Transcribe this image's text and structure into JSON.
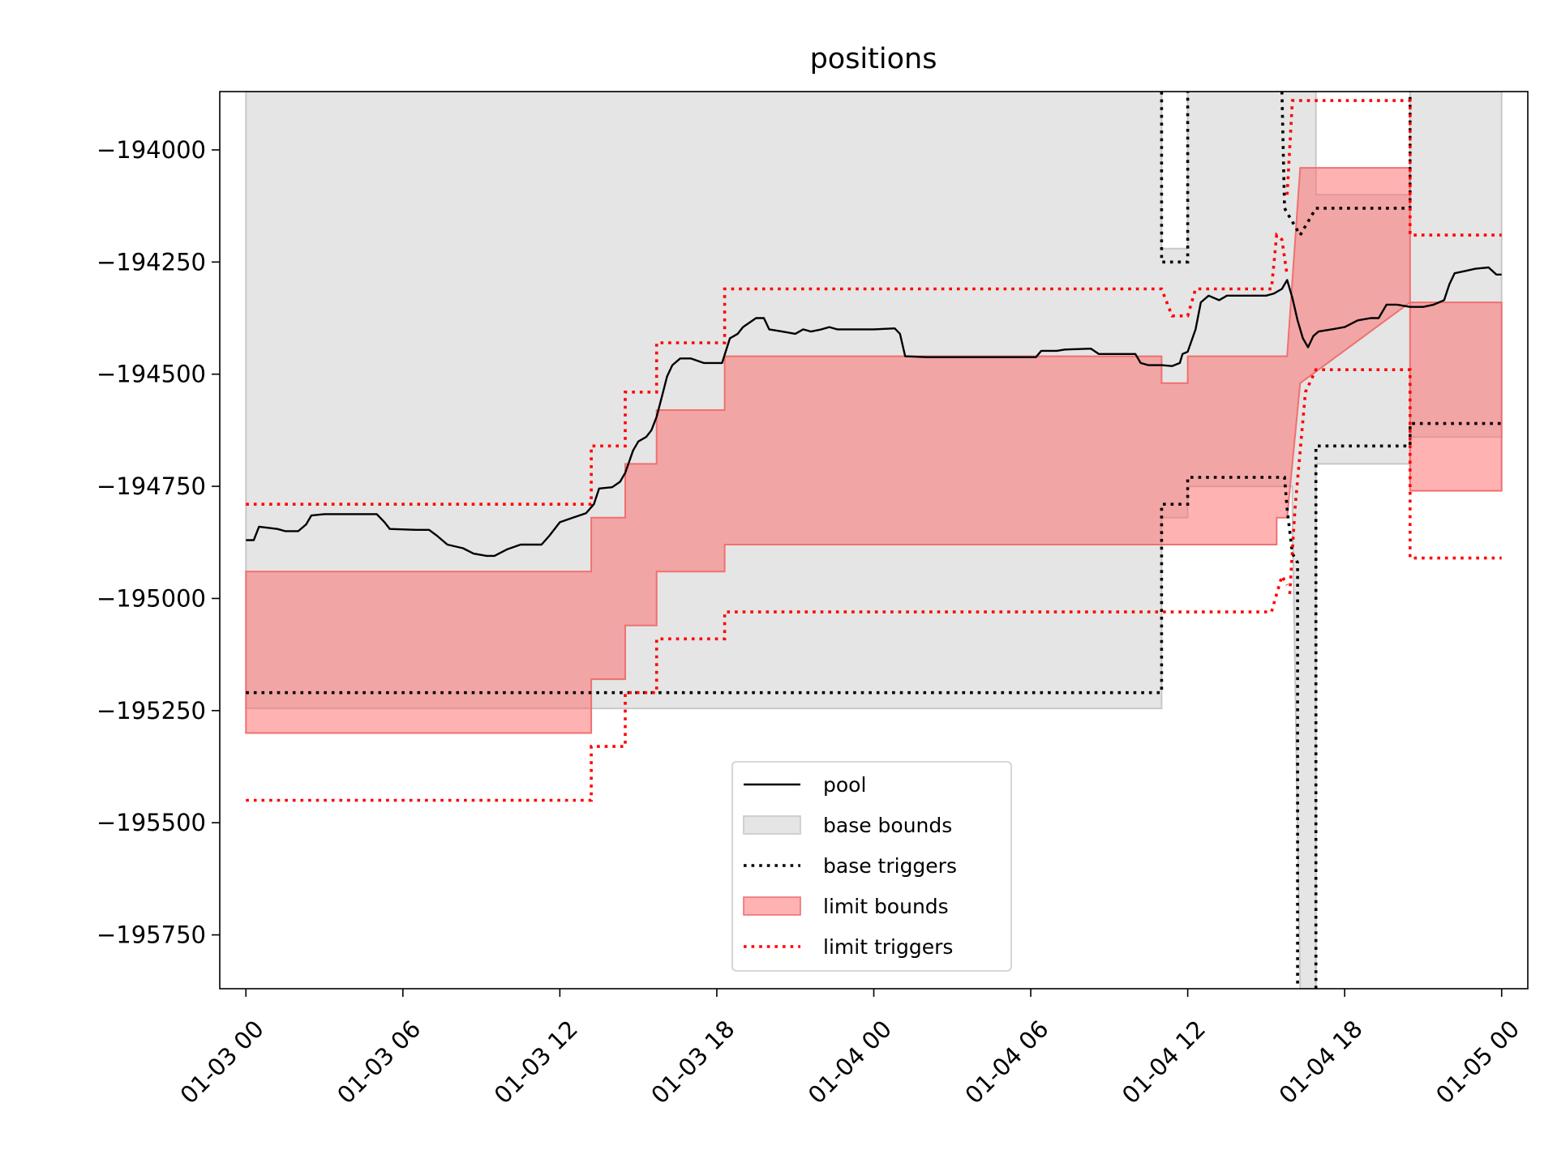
{
  "chart_data": {
    "type": "line",
    "title": "positions",
    "xlabel": "",
    "ylabel": "",
    "xlim": [
      -1.0,
      49.0
    ],
    "ylim": [
      -195870,
      -193870
    ],
    "xticks": [
      {
        "x": 0,
        "label": "01-03 00"
      },
      {
        "x": 6,
        "label": "01-03 06"
      },
      {
        "x": 12,
        "label": "01-03 12"
      },
      {
        "x": 18,
        "label": "01-03 18"
      },
      {
        "x": 24,
        "label": "01-04 00"
      },
      {
        "x": 30,
        "label": "01-04 06"
      },
      {
        "x": 36,
        "label": "01-04 12"
      },
      {
        "x": 42,
        "label": "01-04 18"
      },
      {
        "x": 48,
        "label": "01-05 00"
      }
    ],
    "yticks": [
      {
        "y": -194000,
        "label": "−194000"
      },
      {
        "y": -194250,
        "label": "−194250"
      },
      {
        "y": -194500,
        "label": "−194500"
      },
      {
        "y": -194750,
        "label": "−194750"
      },
      {
        "y": -195000,
        "label": "−195000"
      },
      {
        "y": -195250,
        "label": "−195250"
      },
      {
        "y": -195500,
        "label": "−195500"
      },
      {
        "y": -195750,
        "label": "−195750"
      }
    ],
    "grid": false,
    "legend_position": "lower-center",
    "colors": {
      "pool": "#000000",
      "base_bounds_fill": "#e5e5e5",
      "base_bounds_edge": "#c8c8c8",
      "base_triggers": "#000000",
      "limit_bounds_fill": "#ff6666",
      "limit_bounds_edge": "#f07070",
      "limit_triggers": "#ff0000"
    },
    "legend": [
      {
        "key": "pool",
        "label": "pool",
        "style": "line"
      },
      {
        "key": "base_bounds",
        "label": "base bounds",
        "style": "patch-grey"
      },
      {
        "key": "base_triggers",
        "label": "base triggers",
        "style": "dotted-black"
      },
      {
        "key": "limit_bounds",
        "label": "limit bounds",
        "style": "patch-red"
      },
      {
        "key": "limit_triggers",
        "label": "limit triggers",
        "style": "dotted-red"
      }
    ],
    "series": {
      "pool": [
        [
          0,
          -194870
        ],
        [
          0.3,
          -194870
        ],
        [
          0.5,
          -194840
        ],
        [
          1.2,
          -194845
        ],
        [
          1.5,
          -194850
        ],
        [
          2.0,
          -194850
        ],
        [
          2.3,
          -194835
        ],
        [
          2.5,
          -194815
        ],
        [
          3.0,
          -194812
        ],
        [
          4.0,
          -194812
        ],
        [
          5.0,
          -194812
        ],
        [
          5.3,
          -194830
        ],
        [
          5.5,
          -194845
        ],
        [
          6.5,
          -194847
        ],
        [
          7.0,
          -194847
        ],
        [
          7.3,
          -194860
        ],
        [
          7.7,
          -194880
        ],
        [
          8.3,
          -194888
        ],
        [
          8.7,
          -194900
        ],
        [
          9.2,
          -194905
        ],
        [
          9.5,
          -194905
        ],
        [
          10.0,
          -194890
        ],
        [
          10.5,
          -194880
        ],
        [
          11.0,
          -194880
        ],
        [
          11.3,
          -194880
        ],
        [
          11.6,
          -194860
        ],
        [
          12.0,
          -194830
        ],
        [
          12.5,
          -194820
        ],
        [
          13.0,
          -194810
        ],
        [
          13.3,
          -194790
        ],
        [
          13.5,
          -194755
        ],
        [
          14.0,
          -194752
        ],
        [
          14.3,
          -194740
        ],
        [
          14.5,
          -194720
        ],
        [
          14.8,
          -194670
        ],
        [
          15.0,
          -194650
        ],
        [
          15.3,
          -194640
        ],
        [
          15.5,
          -194625
        ],
        [
          15.7,
          -194595
        ],
        [
          15.9,
          -194550
        ],
        [
          16.1,
          -194505
        ],
        [
          16.3,
          -194480
        ],
        [
          16.6,
          -194465
        ],
        [
          17.0,
          -194465
        ],
        [
          17.5,
          -194475
        ],
        [
          18.0,
          -194475
        ],
        [
          18.2,
          -194475
        ],
        [
          18.5,
          -194420
        ],
        [
          18.8,
          -194410
        ],
        [
          19.0,
          -194395
        ],
        [
          19.5,
          -194375
        ],
        [
          19.8,
          -194375
        ],
        [
          20.0,
          -194400
        ],
        [
          20.5,
          -194405
        ],
        [
          21.0,
          -194410
        ],
        [
          21.3,
          -194400
        ],
        [
          21.6,
          -194405
        ],
        [
          22.0,
          -194400
        ],
        [
          22.3,
          -194395
        ],
        [
          22.6,
          -194400
        ],
        [
          23.5,
          -194400
        ],
        [
          24.0,
          -194400
        ],
        [
          24.8,
          -194398
        ],
        [
          25.0,
          -194410
        ],
        [
          25.2,
          -194460
        ],
        [
          26.0,
          -194462
        ],
        [
          27.0,
          -194462
        ],
        [
          28.0,
          -194462
        ],
        [
          29.0,
          -194462
        ],
        [
          30.0,
          -194462
        ],
        [
          30.2,
          -194462
        ],
        [
          30.4,
          -194448
        ],
        [
          31.0,
          -194448
        ],
        [
          31.3,
          -194445
        ],
        [
          32.3,
          -194443
        ],
        [
          32.6,
          -194455
        ],
        [
          33.5,
          -194455
        ],
        [
          34.0,
          -194455
        ],
        [
          34.2,
          -194475
        ],
        [
          34.5,
          -194480
        ],
        [
          35.0,
          -194480
        ],
        [
          35.4,
          -194482
        ],
        [
          35.7,
          -194475
        ],
        [
          35.8,
          -194455
        ],
        [
          36.0,
          -194450
        ],
        [
          36.3,
          -194400
        ],
        [
          36.5,
          -194340
        ],
        [
          36.8,
          -194325
        ],
        [
          37.2,
          -194335
        ],
        [
          37.5,
          -194325
        ],
        [
          38.0,
          -194325
        ],
        [
          38.5,
          -194325
        ],
        [
          39.0,
          -194325
        ],
        [
          39.3,
          -194320
        ],
        [
          39.6,
          -194310
        ],
        [
          39.8,
          -194290
        ],
        [
          40.0,
          -194330
        ],
        [
          40.2,
          -194380
        ],
        [
          40.4,
          -194420
        ],
        [
          40.6,
          -194440
        ],
        [
          40.8,
          -194415
        ],
        [
          41.0,
          -194405
        ],
        [
          41.5,
          -194400
        ],
        [
          42.0,
          -194395
        ],
        [
          42.5,
          -194380
        ],
        [
          43.0,
          -194375
        ],
        [
          43.3,
          -194375
        ],
        [
          43.6,
          -194345
        ],
        [
          44.0,
          -194345
        ],
        [
          44.5,
          -194350
        ],
        [
          45.0,
          -194350
        ],
        [
          45.4,
          -194345
        ],
        [
          45.8,
          -194335
        ],
        [
          46.0,
          -194300
        ],
        [
          46.2,
          -194275
        ],
        [
          46.6,
          -194270
        ],
        [
          47.0,
          -194265
        ],
        [
          47.5,
          -194262
        ],
        [
          47.8,
          -194278
        ],
        [
          48.0,
          -194278
        ]
      ],
      "base_bounds": [
        [
          0,
          -193870,
          -195245
        ],
        [
          35.0,
          -193870,
          -195245
        ],
        [
          35.0,
          -194220,
          -194820
        ],
        [
          36.0,
          -194220,
          -194820
        ],
        [
          36.0,
          -193870,
          -194750
        ],
        [
          40.0,
          -193870,
          -194750
        ],
        [
          40.0,
          -193870,
          -194800
        ],
        [
          40.3,
          -193870,
          -195870
        ],
        [
          40.9,
          -193870,
          -195870
        ],
        [
          40.9,
          -194100,
          -194700
        ],
        [
          44.5,
          -194100,
          -194700
        ],
        [
          44.5,
          -193870,
          -194640
        ],
        [
          48.0,
          -193870,
          -194640
        ]
      ],
      "base_triggers_lines": [
        [
          [
            0,
            -195210
          ],
          [
            35.0,
            -195210
          ],
          [
            35.0,
            -194790
          ],
          [
            36.0,
            -194790
          ],
          [
            36.0,
            -194730
          ],
          [
            39.4,
            -194730
          ],
          [
            39.7,
            -194730
          ],
          [
            39.8,
            -194800
          ],
          [
            40.0,
            -194900
          ],
          [
            40.2,
            -194920
          ],
          [
            40.2,
            -195870
          ]
        ],
        [
          [
            35.0,
            -193870
          ],
          [
            35.0,
            -194250
          ],
          [
            36.0,
            -194250
          ],
          [
            36.0,
            -193870
          ]
        ],
        [
          [
            39.6,
            -193870
          ],
          [
            39.7,
            -194130
          ],
          [
            39.9,
            -194150
          ],
          [
            40.3,
            -194190
          ],
          [
            40.5,
            -194170
          ],
          [
            40.9,
            -194130
          ],
          [
            44.5,
            -194130
          ],
          [
            44.5,
            -193870
          ]
        ],
        [
          [
            40.9,
            -195870
          ],
          [
            40.9,
            -194660
          ],
          [
            44.5,
            -194660
          ],
          [
            44.5,
            -194610
          ],
          [
            48.0,
            -194610
          ]
        ]
      ],
      "limit_bounds": [
        [
          0,
          -194940,
          -195300
        ],
        [
          13.2,
          -194940,
          -195300
        ],
        [
          13.2,
          -194820,
          -195180
        ],
        [
          14.5,
          -194820,
          -195180
        ],
        [
          14.5,
          -194700,
          -195060
        ],
        [
          15.7,
          -194700,
          -195060
        ],
        [
          15.7,
          -194580,
          -194940
        ],
        [
          18.3,
          -194580,
          -194940
        ],
        [
          18.3,
          -194460,
          -194880
        ],
        [
          35.0,
          -194460,
          -194880
        ],
        [
          35.0,
          -194520,
          -194880
        ],
        [
          36.0,
          -194520,
          -194880
        ],
        [
          36.0,
          -194460,
          -194880
        ],
        [
          39.2,
          -194460,
          -194880
        ],
        [
          39.4,
          -194460,
          -194880
        ],
        [
          39.4,
          -194460,
          -194820
        ],
        [
          39.8,
          -194460,
          -194820
        ],
        [
          40.3,
          -194040,
          -194520
        ],
        [
          44.5,
          -194040,
          -194340
        ],
        [
          44.5,
          -194340,
          -194760
        ],
        [
          48.0,
          -194340,
          -194760
        ]
      ],
      "limit_triggers_lines": [
        [
          [
            0,
            -194790
          ],
          [
            13.2,
            -194790
          ],
          [
            13.2,
            -194660
          ],
          [
            14.5,
            -194660
          ],
          [
            14.5,
            -194540
          ],
          [
            15.7,
            -194540
          ],
          [
            15.7,
            -194430
          ],
          [
            18.3,
            -194430
          ],
          [
            18.3,
            -194310
          ],
          [
            35.0,
            -194310
          ],
          [
            35.4,
            -194370
          ],
          [
            36.0,
            -194370
          ],
          [
            36.3,
            -194310
          ],
          [
            39.2,
            -194310
          ],
          [
            39.4,
            -194190
          ],
          [
            39.6,
            -194200
          ],
          [
            39.8,
            -194280
          ]
        ],
        [
          [
            0,
            -195450
          ],
          [
            13.2,
            -195450
          ],
          [
            13.2,
            -195330
          ],
          [
            14.5,
            -195330
          ],
          [
            14.5,
            -195210
          ],
          [
            15.7,
            -195210
          ],
          [
            15.7,
            -195090
          ],
          [
            18.3,
            -195090
          ],
          [
            18.3,
            -195030
          ],
          [
            35.0,
            -195030
          ],
          [
            39.2,
            -195030
          ],
          [
            39.4,
            -194990
          ],
          [
            39.6,
            -194950
          ],
          [
            39.8,
            -194970
          ]
        ],
        [
          [
            39.8,
            -194100
          ],
          [
            40.0,
            -193890
          ],
          [
            44.5,
            -193890
          ],
          [
            44.5,
            -194190
          ],
          [
            48.0,
            -194190
          ]
        ],
        [
          [
            39.9,
            -194990
          ],
          [
            40.1,
            -194800
          ],
          [
            40.5,
            -194540
          ],
          [
            40.9,
            -194490
          ],
          [
            44.5,
            -194490
          ],
          [
            44.5,
            -194910
          ],
          [
            48.0,
            -194910
          ]
        ]
      ]
    }
  }
}
